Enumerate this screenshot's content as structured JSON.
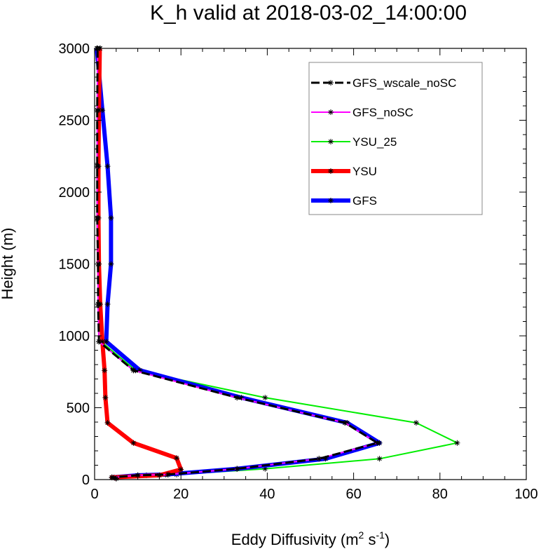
{
  "chart_data": {
    "type": "line",
    "title": "K_h valid at 2018-03-02_14:00:00",
    "xlabel": "Eddy Diffusivity",
    "xlabel_unit": {
      "m": "m",
      "m_exp": "2",
      "s": " s",
      "s_exp": "-1"
    },
    "ylabel": "Height (m)",
    "xlim": [
      0,
      100
    ],
    "ylim": [
      0,
      3000
    ],
    "x_ticks": [
      "0",
      "20",
      "40",
      "60",
      "80",
      "100"
    ],
    "y_ticks": [
      "0",
      "500",
      "1000",
      "1500",
      "2000",
      "2500",
      "3000"
    ],
    "x_tick_values": [
      0,
      20,
      40,
      60,
      80,
      100
    ],
    "y_tick_values": [
      0,
      500,
      1000,
      1500,
      2000,
      2500,
      3000
    ],
    "grid": false,
    "legend_position": "top-right",
    "series": [
      {
        "name": "GFS_wscale_noSC",
        "color": "#000000",
        "dashed": true,
        "points": [
          [
            5,
            8
          ],
          [
            4,
            15
          ],
          [
            10,
            30
          ],
          [
            17,
            35
          ],
          [
            33,
            75
          ],
          [
            52,
            145
          ],
          [
            65.5,
            255
          ],
          [
            58,
            395
          ],
          [
            33,
            570
          ],
          [
            9,
            760
          ],
          [
            1,
            960
          ],
          [
            0.8,
            1220
          ],
          [
            0.8,
            1500
          ],
          [
            0.6,
            1820
          ],
          [
            0.6,
            2180
          ],
          [
            0.6,
            2570
          ],
          [
            0.7,
            3000
          ]
        ]
      },
      {
        "name": "GFS_noSC",
        "color": "#ff00ff",
        "dashed": false,
        "points": [
          [
            5,
            8
          ],
          [
            4,
            15
          ],
          [
            10,
            30
          ],
          [
            17,
            35
          ],
          [
            33,
            75
          ],
          [
            52,
            145
          ],
          [
            65.5,
            255
          ],
          [
            58,
            395
          ],
          [
            33,
            570
          ],
          [
            9,
            760
          ],
          [
            1,
            960
          ],
          [
            0.8,
            1220
          ],
          [
            0.8,
            1500
          ],
          [
            0.6,
            1820
          ],
          [
            0.6,
            2180
          ],
          [
            0.6,
            2570
          ],
          [
            0.7,
            3000
          ]
        ]
      },
      {
        "name": "YSU_25",
        "color": "#00ee00",
        "dashed": false,
        "points": [
          [
            5,
            8
          ],
          [
            4.5,
            15
          ],
          [
            12,
            30
          ],
          [
            19,
            35
          ],
          [
            39.5,
            75
          ],
          [
            66,
            145
          ],
          [
            84,
            255
          ],
          [
            74.5,
            395
          ],
          [
            39.5,
            570
          ],
          [
            9.5,
            760
          ],
          [
            1.5,
            960
          ],
          [
            1,
            1220
          ],
          [
            0.9,
            1500
          ],
          [
            0.7,
            1820
          ],
          [
            0.8,
            2180
          ],
          [
            1.2,
            2570
          ],
          [
            1.3,
            3000
          ]
        ]
      },
      {
        "name": "YSU",
        "color": "#ff0000",
        "dashed": false,
        "points": [
          [
            5,
            8
          ],
          [
            4,
            15
          ],
          [
            15,
            30
          ],
          [
            20,
            70
          ],
          [
            19,
            150
          ],
          [
            9,
            255
          ],
          [
            3,
            395
          ],
          [
            2.5,
            570
          ],
          [
            2.3,
            760
          ],
          [
            1.8,
            960
          ],
          [
            1.3,
            1220
          ],
          [
            1,
            1500
          ],
          [
            0.9,
            1820
          ],
          [
            0.9,
            2180
          ],
          [
            1,
            2570
          ],
          [
            1.2,
            3000
          ]
        ]
      },
      {
        "name": "GFS",
        "color": "#0000ff",
        "dashed": false,
        "points": [
          [
            5,
            8
          ],
          [
            4,
            15
          ],
          [
            10,
            30
          ],
          [
            16.5,
            35
          ],
          [
            33,
            75
          ],
          [
            53.5,
            145
          ],
          [
            66,
            255
          ],
          [
            58.5,
            395
          ],
          [
            34,
            570
          ],
          [
            10.5,
            760
          ],
          [
            2.7,
            960
          ],
          [
            3,
            1220
          ],
          [
            3.8,
            1500
          ],
          [
            3.8,
            1820
          ],
          [
            3,
            2180
          ],
          [
            1.8,
            2570
          ],
          [
            0.5,
            3000
          ]
        ]
      }
    ]
  }
}
